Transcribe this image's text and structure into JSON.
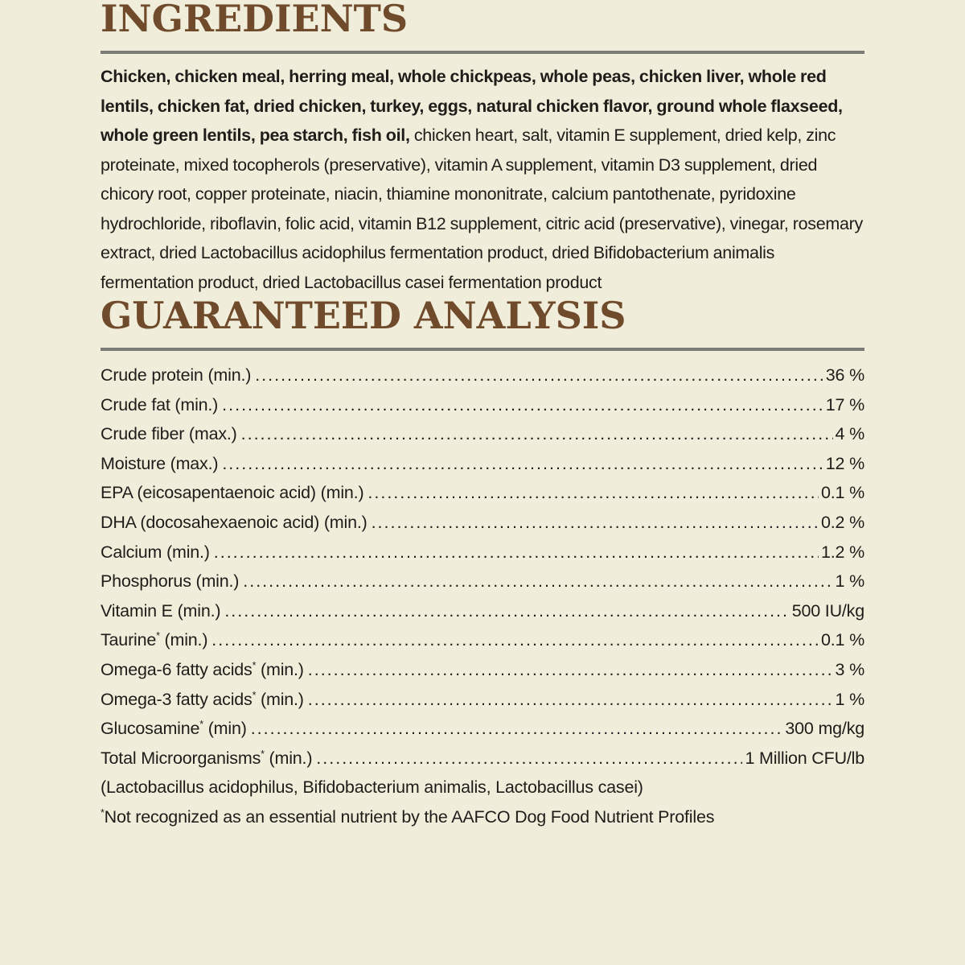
{
  "palette": {
    "background": "#f0eddb",
    "heading_brown": "#6f4b2b",
    "divider_gray": "#7b7b77",
    "text_color": "#1e1d19"
  },
  "ingredients": {
    "title": "INGREDIENTS",
    "bold_text": "Chicken, chicken meal, herring meal, whole chickpeas, whole peas, chicken liver, whole red lentils, chicken fat, dried chicken, turkey, eggs, natural chicken flavor, ground whole flaxseed, whole green lentils, pea starch, fish oil,",
    "regular_text": " chicken heart, salt, vitamin E supplement, dried kelp, zinc proteinate, mixed tocopherols (preservative), vitamin A supplement, vitamin D3 supplement, dried chicory root, copper proteinate, niacin, thiamine mononitrate, calcium pantothenate, pyridoxine hydrochloride, riboflavin, folic acid, vitamin B12 supplement, citric acid (preservative), vinegar, rosemary extract, dried Lactobacillus acidophilus fermentation product, dried Bifidobacterium animalis fermentation product, dried Lactobacillus casei fermentation product"
  },
  "guaranteed_analysis": {
    "title": "GUARANTEED ANALYSIS",
    "rows": [
      {
        "before": "Crude protein (min.)",
        "sup": "",
        "after": "",
        "value": "36 %"
      },
      {
        "before": "Crude fat (min.)",
        "sup": "",
        "after": "",
        "value": "17 %"
      },
      {
        "before": "Crude fiber (max.)",
        "sup": "",
        "after": "",
        "value": "4 %"
      },
      {
        "before": "Moisture (max.)",
        "sup": "",
        "after": "",
        "value": "12 %"
      },
      {
        "before": "EPA (eicosapentaenoic acid) (min.)",
        "sup": "",
        "after": "",
        "value": "0.1 %"
      },
      {
        "before": "DHA (docosahexaenoic acid) (min.)",
        "sup": "",
        "after": "",
        "value": "0.2 %"
      },
      {
        "before": "Calcium (min.)",
        "sup": "",
        "after": "",
        "value": "1.2 %"
      },
      {
        "before": "Phosphorus (min.)",
        "sup": "",
        "after": "",
        "value": "1 %"
      },
      {
        "before": "Vitamin E (min.)",
        "sup": "",
        "after": "",
        "value": "500 IU/kg"
      },
      {
        "before": "Taurine",
        "sup": "*",
        "after": " (min.)",
        "value": "0.1 %"
      },
      {
        "before": "Omega-6 fatty acids",
        "sup": "*",
        "after": " (min.)",
        "value": "3 %"
      },
      {
        "before": "Omega-3 fatty acids",
        "sup": "*",
        "after": " (min.)",
        "value": "1 %"
      },
      {
        "before": "Glucosamine",
        "sup": "*",
        "after": " (min)",
        "value": "300 mg/kg"
      },
      {
        "before": "Total Microorganisms",
        "sup": "*",
        "after": " (min.)",
        "value": "1 Million CFU/lb"
      }
    ],
    "microorganisms_detail": "(Lactobacillus acidophilus, Bifidobacterium animalis, Lactobacillus casei)",
    "footnote_sup": "*",
    "footnote_text": "Not recognized as an essential nutrient by the AAFCO Dog Food Nutrient Profiles"
  }
}
